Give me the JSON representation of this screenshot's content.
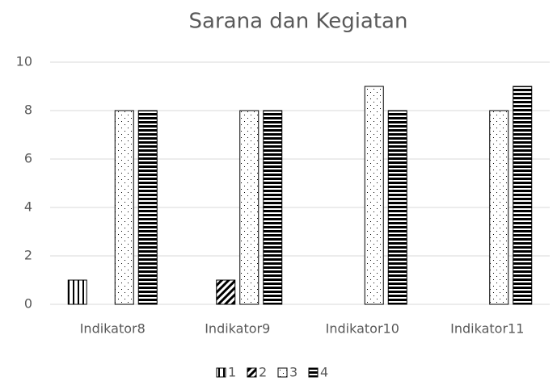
{
  "chart_data": {
    "type": "bar",
    "title": "Sarana dan Kegiatan",
    "categories": [
      "Indikator8",
      "Indikator9",
      "Indikator10",
      "Indikator11"
    ],
    "series": [
      {
        "name": "1",
        "color": "#000000",
        "values": [
          1,
          0,
          0,
          0
        ]
      },
      {
        "name": "2",
        "color": "#000000",
        "values": [
          0,
          1,
          0,
          0
        ]
      },
      {
        "name": "3",
        "color": "#000000",
        "values": [
          8,
          8,
          9,
          8
        ]
      },
      {
        "name": "4",
        "color": "#000000",
        "values": [
          8,
          8,
          8,
          9
        ]
      }
    ],
    "ylim": [
      0,
      10
    ],
    "yticks": [
      0,
      2,
      4,
      6,
      8,
      10
    ],
    "grid": true,
    "legend": "bottom"
  }
}
